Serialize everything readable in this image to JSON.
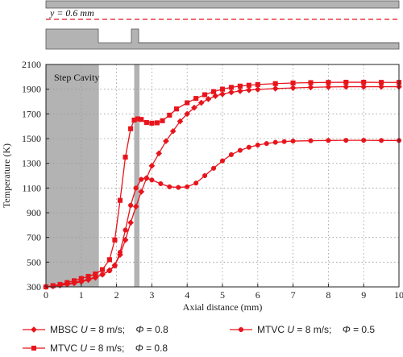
{
  "chart_data": {
    "type": "line",
    "title": "",
    "xlabel": "Axial distance (mm)",
    "ylabel": "Temperature (K)",
    "xlim": [
      0,
      10
    ],
    "ylim": [
      300,
      2100
    ],
    "xticks": [
      0,
      1,
      2,
      3,
      4,
      5,
      6,
      7,
      8,
      9,
      10
    ],
    "yticks": [
      300,
      500,
      700,
      900,
      1100,
      1300,
      1500,
      1700,
      1900,
      2100
    ],
    "grid": "dotted",
    "legend_position": "bottom",
    "annotations": {
      "region_label": "Step Cavity",
      "step_cavity_x": [
        0,
        1.5
      ],
      "slot_x": [
        2.5,
        2.65
      ],
      "schematic_line_label": "y = 0.6 mm"
    },
    "series": [
      {
        "name": "MBSC U = 8 m/s; Φ = 0.8",
        "legend_model": "MBSC",
        "legend_u": "U",
        "legend_u_val": "= 8 m/s;",
        "legend_phi": "Φ",
        "legend_phi_val": "= 0.8",
        "marker": "diamond",
        "x": [
          0,
          0.2,
          0.4,
          0.6,
          0.8,
          1.0,
          1.2,
          1.4,
          1.6,
          1.8,
          1.95,
          2.1,
          2.25,
          2.4,
          2.55,
          2.7,
          2.85,
          3.0,
          3.2,
          3.4,
          3.6,
          3.8,
          4.0,
          4.2,
          4.4,
          4.6,
          4.8,
          5.0,
          5.25,
          5.5,
          5.75,
          6.0,
          6.5,
          7.0,
          7.5,
          8.0,
          8.5,
          9.0,
          9.5,
          10.0
        ],
        "values": [
          300,
          305,
          312,
          320,
          330,
          342,
          357,
          375,
          400,
          435,
          475,
          560,
          680,
          820,
          950,
          1070,
          1180,
          1280,
          1380,
          1480,
          1560,
          1640,
          1700,
          1750,
          1790,
          1820,
          1845,
          1860,
          1875,
          1885,
          1893,
          1898,
          1905,
          1910,
          1915,
          1918,
          1920,
          1920,
          1920,
          1920
        ]
      },
      {
        "name": "MTVC U = 8 m/s; Φ = 0.8",
        "legend_model": "MTVC",
        "legend_u": "U",
        "legend_u_val": "= 8 m/s;",
        "legend_phi": "Φ",
        "legend_phi_val": "= 0.8",
        "marker": "square",
        "x": [
          0,
          0.2,
          0.4,
          0.6,
          0.8,
          1.0,
          1.2,
          1.4,
          1.6,
          1.8,
          1.95,
          2.1,
          2.25,
          2.4,
          2.5,
          2.6,
          2.7,
          2.85,
          3.0,
          3.15,
          3.3,
          3.5,
          3.7,
          4.0,
          4.25,
          4.5,
          4.75,
          5.0,
          5.25,
          5.5,
          5.75,
          6.0,
          6.5,
          7.0,
          7.5,
          8.0,
          8.5,
          9.0,
          9.5,
          10.0
        ],
        "values": [
          300,
          310,
          320,
          335,
          350,
          368,
          385,
          405,
          440,
          520,
          680,
          1000,
          1350,
          1580,
          1650,
          1660,
          1655,
          1630,
          1625,
          1628,
          1645,
          1690,
          1740,
          1790,
          1825,
          1855,
          1880,
          1900,
          1915,
          1925,
          1932,
          1938,
          1945,
          1950,
          1953,
          1955,
          1956,
          1956,
          1955,
          1955
        ]
      },
      {
        "name": "MTVC U = 8 m/s; Φ = 0.5",
        "legend_model": "MTVC",
        "legend_u": "U",
        "legend_u_val": "= 8 m/s;",
        "legend_phi": "Φ",
        "legend_phi_val": "= 0.5",
        "marker": "circle",
        "x": [
          0,
          0.2,
          0.4,
          0.6,
          0.8,
          1.0,
          1.2,
          1.4,
          1.6,
          1.8,
          1.95,
          2.1,
          2.25,
          2.4,
          2.55,
          2.7,
          2.85,
          3.0,
          3.25,
          3.5,
          3.75,
          4.0,
          4.25,
          4.5,
          4.75,
          5.0,
          5.25,
          5.5,
          5.75,
          6.0,
          6.25,
          6.5,
          6.75,
          7.0,
          7.5,
          8.0,
          8.5,
          9.0,
          9.5,
          10.0
        ],
        "values": [
          300,
          308,
          316,
          325,
          336,
          348,
          362,
          378,
          400,
          430,
          470,
          580,
          760,
          960,
          1100,
          1170,
          1180,
          1165,
          1135,
          1110,
          1105,
          1110,
          1140,
          1200,
          1260,
          1320,
          1370,
          1405,
          1430,
          1448,
          1460,
          1470,
          1476,
          1480,
          1483,
          1485,
          1486,
          1486,
          1485,
          1485
        ]
      }
    ]
  },
  "colors": {
    "series": "#e8141c",
    "cavity": "#b3b3b3",
    "dashed": "#e8141c"
  }
}
